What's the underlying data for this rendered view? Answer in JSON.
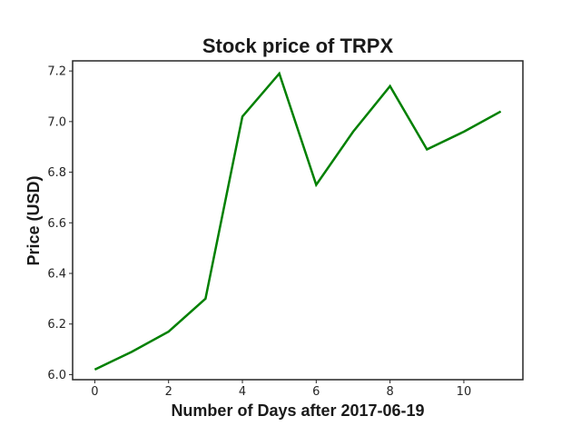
{
  "chart_data": {
    "type": "line",
    "title": "Stock price of TRPX",
    "xlabel": "Number of Days after 2017-06-19",
    "ylabel": "Price (USD)",
    "x": [
      0,
      1,
      2,
      3,
      4,
      5,
      6,
      7,
      8,
      9,
      10,
      11
    ],
    "series": [
      {
        "values": [
          6.02,
          6.09,
          6.17,
          6.3,
          7.02,
          7.19,
          6.75,
          6.96,
          7.14,
          6.89,
          6.96,
          7.04
        ],
        "color": "#008000"
      }
    ],
    "xlim": [
      -0.6,
      11.6
    ],
    "ylim": [
      5.98,
      7.24
    ],
    "xticks": [
      0,
      2,
      4,
      6,
      8,
      10
    ],
    "xtick_labels": [
      "0",
      "2",
      "4",
      "6",
      "8",
      "10"
    ],
    "yticks": [
      6.0,
      6.2,
      6.4,
      6.6,
      6.8,
      7.0,
      7.2
    ],
    "ytick_labels": [
      "6.0",
      "6.2",
      "6.4",
      "6.6",
      "6.8",
      "7.0",
      "7.2"
    ],
    "grid": false,
    "legend": "none"
  }
}
